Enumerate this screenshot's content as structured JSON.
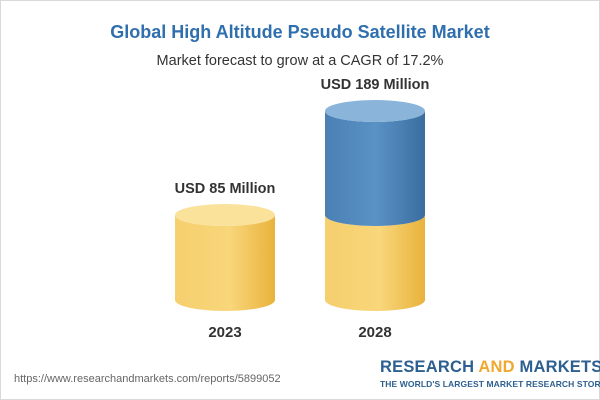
{
  "header": {
    "title": "Global High Altitude Pseudo Satellite Market",
    "subtitle": "Market forecast to grow at a CAGR of 17.2%"
  },
  "chart_data": {
    "type": "bar",
    "title": "Global High Altitude Pseudo Satellite Market",
    "subtitle": "Market forecast to grow at a CAGR of 17.2%",
    "categories": [
      "2023",
      "2028"
    ],
    "values": [
      85,
      189
    ],
    "data_labels": [
      "USD 85 Million",
      "USD 189 Million"
    ],
    "unit": "USD Million",
    "xlabel": "",
    "ylabel": "",
    "grid": false,
    "legend": "none",
    "colors": {
      "base": "#f5c85c",
      "growth": "#4f86b9"
    }
  },
  "footer": {
    "url": "https://www.researchandmarkets.com/reports/5899052",
    "brand_part1": "RESEARCH ",
    "brand_part2": "AND",
    "brand_part3": " MARKETS",
    "tagline": "THE WORLD'S LARGEST MARKET RESEARCH STORE"
  }
}
